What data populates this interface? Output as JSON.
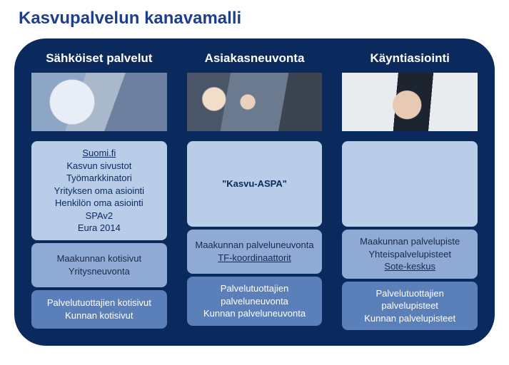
{
  "title": "Kasvupalvelun kanavamalli",
  "colors": {
    "title": "#1f3f8c",
    "panel_bg": "#0a2a5e",
    "box1_bg": "#b9cde8",
    "box2_bg": "#8fabd5",
    "box3_bg": "#5b7fb8",
    "heading_text": "#ffffff",
    "box1_text": "#0a2a5e",
    "box2_text": "#1a2a4a",
    "box3_text": "#ffffff"
  },
  "columns": [
    {
      "heading": "Sähköiset palvelut",
      "image": "desktop-monitor-photo",
      "box1": [
        {
          "text": "Suomi.fi",
          "underline": true
        },
        {
          "text": "Kasvun sivustot"
        },
        {
          "text": "Työmarkkinatori"
        },
        {
          "text": "Yrityksen oma asiointi"
        },
        {
          "text": "Henkilön oma asiointi"
        },
        {
          "text": "SPAv2"
        },
        {
          "text": "Eura 2014"
        }
      ],
      "box2": [
        {
          "text": "Maakunnan kotisivut"
        },
        {
          "text": "Yritysneuvonta"
        }
      ],
      "box3": [
        {
          "text": "Palvelutuottajien kotisivut"
        },
        {
          "text": "Kunnan kotisivut"
        }
      ]
    },
    {
      "heading": "Asiakasneuvonta",
      "image": "callcenter-headset-photo",
      "box1": [
        {
          "text": "\"Kasvu-ASPA\"",
          "bold": true
        }
      ],
      "box2": [
        {
          "text": "Maakunnan palveluneuvonta"
        },
        {
          "text": "TF-koordinaattorit",
          "underline": true
        }
      ],
      "box3": [
        {
          "text": "Palvelutuottajien palveluneuvonta"
        },
        {
          "text": "Kunnan palveluneuvonta"
        }
      ]
    },
    {
      "heading": "Käyntiasiointi",
      "image": "handshake-photo",
      "box1": [],
      "box2": [
        {
          "text": "Maakunnan palvelupiste"
        },
        {
          "text": "Yhteispalvelupisteet"
        },
        {
          "text": "Sote-keskus",
          "underline": true
        }
      ],
      "box3": [
        {
          "text": "Palvelutuottajien palvelupisteet"
        },
        {
          "text": "Kunnan palvelupisteet"
        }
      ]
    }
  ]
}
